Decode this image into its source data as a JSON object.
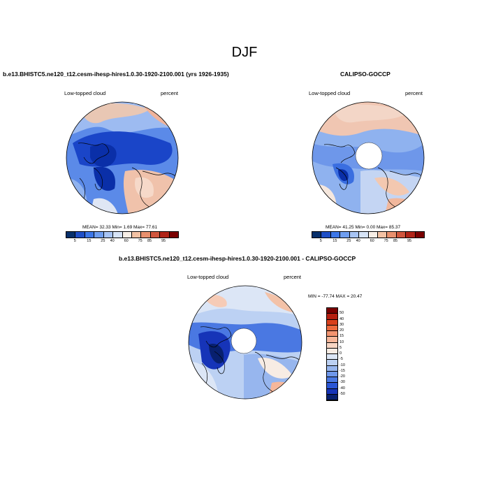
{
  "figure": {
    "title": "DJF",
    "left_panel": {
      "title": "b.e13.BHISTC5.ne120_t12.cesm-ihesp-hires1.0.30-1920-2100.001 (yrs 1926-1935)",
      "variable": "Low-topped cloud",
      "units": "percent",
      "stats": "MEAN=  32.33  Min=   1.69  Max=  77.61"
    },
    "right_panel": {
      "title": "CALIPSO-GOCCP",
      "variable": "Low-topped cloud",
      "units": "percent",
      "stats": "MEAN=  41.25  Min=   0.00  Max=  85.37"
    },
    "diff_panel": {
      "title": "b.e13.BHISTC5.ne120_t12.cesm-ihesp-hires1.0.30-1920-2100.001 - CALIPSO-GOCCP",
      "variable": "Low-topped cloud",
      "units": "percent",
      "stats": "MIN = -77.74  MAX =  20.47"
    },
    "abs_colorbar": {
      "labels": [
        "5",
        "15",
        "25",
        "40",
        "60",
        "75",
        "85",
        "95"
      ],
      "colors": [
        "#08306b",
        "#1f4fc6",
        "#3d77e8",
        "#6f9ef0",
        "#a7c4f4",
        "#d6e3f6",
        "#f7eee6",
        "#f3c2a4",
        "#e8906e",
        "#d0563e",
        "#b02418",
        "#7a0000"
      ]
    },
    "diff_colorbar": {
      "labels": [
        "50",
        "40",
        "30",
        "20",
        "15",
        "10",
        "5",
        "0",
        "-5",
        "-10",
        "-15",
        "-20",
        "-30",
        "-40",
        "-50"
      ],
      "colors": [
        "#7a0000",
        "#b51f10",
        "#d8401c",
        "#ec6a3e",
        "#f29470",
        "#f6b79a",
        "#f8d6c4",
        "#f7ece4",
        "#dce6f6",
        "#bcd1f3",
        "#97b6ee",
        "#6e97ea",
        "#4a78e2",
        "#2a56d6",
        "#1634b8",
        "#08206f"
      ]
    },
    "map_colors": {
      "deep_blue": "#0a2fa8",
      "mid_blue": "#2f62e0",
      "light_blue": "#8fb2ef",
      "pale": "#e8ecf5",
      "salmon": "#f1b79c",
      "coast": "#000000"
    }
  }
}
